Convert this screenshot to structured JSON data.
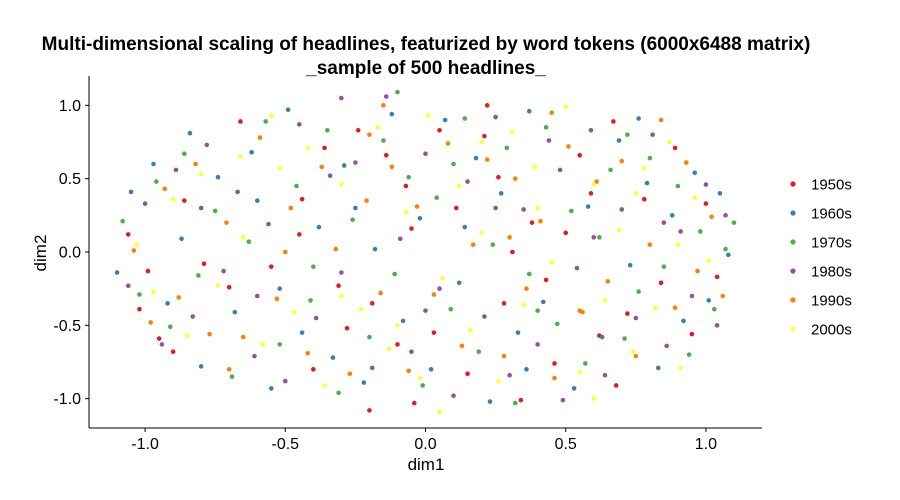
{
  "chart_data": {
    "type": "scatter",
    "title": "Multi-dimensional scaling of headlines, featurized by word tokens (6000x6488 matrix)",
    "subtitle": "_sample of 500 headlines_",
    "xlabel": "dim1",
    "ylabel": "dim2",
    "xlim": [
      -1.2,
      1.2
    ],
    "ylim": [
      -1.2,
      1.2
    ],
    "xticks": [
      -1.0,
      -0.5,
      0.0,
      0.5,
      1.0
    ],
    "yticks": [
      -1.0,
      -0.5,
      0.0,
      0.5,
      1.0
    ],
    "xtick_labels": [
      "-1.0",
      "-0.5",
      "0.0",
      "0.5",
      "1.0"
    ],
    "ytick_labels": [
      "-1.0",
      "-0.5",
      "0.0",
      "0.5",
      "1.0"
    ],
    "grid": false,
    "legend_position": "right",
    "series": [
      {
        "name": "1950s",
        "color": "#e41a1c",
        "points": [
          [
            -1.06,
            0.12
          ],
          [
            -0.99,
            -0.13
          ],
          [
            -0.95,
            -0.59
          ],
          [
            -0.9,
            -0.68
          ],
          [
            -0.86,
            0.35
          ],
          [
            -0.79,
            -0.08
          ],
          [
            -0.7,
            -0.24
          ],
          [
            -0.55,
            -0.1
          ],
          [
            -0.44,
            0.36
          ],
          [
            -0.4,
            -0.8
          ],
          [
            -0.36,
            0.71
          ],
          [
            -0.31,
            -0.23
          ],
          [
            -0.28,
            -0.52
          ],
          [
            -0.24,
            0.83
          ],
          [
            -0.19,
            -0.35
          ],
          [
            -0.14,
            0.66
          ],
          [
            -0.1,
            -0.63
          ],
          [
            -0.07,
            0.45
          ],
          [
            -0.04,
            -1.03
          ],
          [
            0.03,
            -0.55
          ],
          [
            0.11,
            0.3
          ],
          [
            0.15,
            -0.83
          ],
          [
            0.21,
            0.79
          ],
          [
            0.26,
            0.51
          ],
          [
            0.28,
            -0.35
          ],
          [
            0.34,
            -1.01
          ],
          [
            0.38,
            0.2
          ],
          [
            0.46,
            -0.76
          ],
          [
            0.5,
            0.13
          ],
          [
            0.55,
            0.66
          ],
          [
            0.62,
            -0.57
          ],
          [
            0.67,
            0.89
          ],
          [
            0.72,
            -0.42
          ],
          [
            0.78,
            0.36
          ],
          [
            0.84,
            -0.21
          ],
          [
            0.89,
            0.71
          ],
          [
            0.95,
            -0.56
          ],
          [
            1.0,
            0.33
          ],
          [
            1.04,
            -0.17
          ],
          [
            0.22,
            1.0
          ],
          [
            -0.66,
            0.89
          ],
          [
            -1.02,
            -0.39
          ],
          [
            0.68,
            -0.91
          ],
          [
            0.05,
            0.83
          ],
          [
            -0.2,
            -1.08
          ],
          [
            0.59,
            0.4
          ],
          [
            -0.45,
            0.12
          ],
          [
            0.43,
            -0.19
          ],
          [
            -0.05,
            0.16
          ],
          [
            0.31,
            0.0
          ]
        ]
      },
      {
        "name": "1960s",
        "color": "#377eb8",
        "points": [
          [
            -1.1,
            -0.14
          ],
          [
            -1.05,
            0.41
          ],
          [
            -0.97,
            0.6
          ],
          [
            -0.92,
            -0.35
          ],
          [
            -0.84,
            0.81
          ],
          [
            -0.8,
            -0.78
          ],
          [
            -0.74,
            0.51
          ],
          [
            -0.68,
            -0.41
          ],
          [
            -0.6,
            0.35
          ],
          [
            -0.55,
            -0.93
          ],
          [
            -0.49,
            0.97
          ],
          [
            -0.44,
            -0.55
          ],
          [
            -0.38,
            0.17
          ],
          [
            -0.33,
            -0.72
          ],
          [
            -0.29,
            0.59
          ],
          [
            -0.22,
            -0.89
          ],
          [
            -0.18,
            0.02
          ],
          [
            -0.12,
            0.94
          ],
          [
            -0.08,
            -0.47
          ],
          [
            -0.02,
            0.23
          ],
          [
            0.02,
            -0.8
          ],
          [
            0.07,
            0.9
          ],
          [
            0.12,
            -0.21
          ],
          [
            0.18,
            0.64
          ],
          [
            0.23,
            -1.02
          ],
          [
            0.27,
            0.4
          ],
          [
            0.33,
            -0.55
          ],
          [
            0.37,
            0.96
          ],
          [
            0.42,
            -0.34
          ],
          [
            0.48,
            0.56
          ],
          [
            0.53,
            -0.93
          ],
          [
            0.58,
            0.31
          ],
          [
            0.63,
            -0.58
          ],
          [
            0.69,
            0.76
          ],
          [
            0.73,
            -0.09
          ],
          [
            0.79,
            0.47
          ],
          [
            0.83,
            -0.79
          ],
          [
            0.88,
            0.25
          ],
          [
            0.92,
            -0.47
          ],
          [
            0.96,
            0.54
          ],
          [
            1.01,
            -0.33
          ],
          [
            1.05,
            0.4
          ],
          [
            1.08,
            -0.02
          ],
          [
            -0.25,
            0.3
          ],
          [
            0.14,
            0.17
          ],
          [
            -0.52,
            -0.25
          ],
          [
            0.36,
            -0.8
          ],
          [
            -0.62,
            0.68
          ],
          [
            0.76,
            0.91
          ],
          [
            -0.87,
            0.09
          ]
        ]
      },
      {
        "name": "1970s",
        "color": "#4daf4a",
        "points": [
          [
            -1.08,
            0.21
          ],
          [
            -1.02,
            -0.29
          ],
          [
            -0.96,
            0.48
          ],
          [
            -0.91,
            -0.51
          ],
          [
            -0.86,
            0.67
          ],
          [
            -0.81,
            -0.16
          ],
          [
            -0.75,
            0.28
          ],
          [
            -0.69,
            -0.85
          ],
          [
            -0.63,
            0.07
          ],
          [
            -0.57,
            0.89
          ],
          [
            -0.52,
            -0.63
          ],
          [
            -0.46,
            0.45
          ],
          [
            -0.41,
            -0.33
          ],
          [
            -0.35,
            0.83
          ],
          [
            -0.31,
            -0.96
          ],
          [
            -0.26,
            0.22
          ],
          [
            -0.2,
            -0.58
          ],
          [
            -0.15,
            0.76
          ],
          [
            -0.11,
            -0.15
          ],
          [
            -0.06,
            0.51
          ],
          [
            -0.01,
            -0.91
          ],
          [
            0.04,
            0.37
          ],
          [
            0.09,
            -0.39
          ],
          [
            0.14,
            0.91
          ],
          [
            0.19,
            -0.68
          ],
          [
            0.24,
            0.05
          ],
          [
            0.29,
            0.71
          ],
          [
            0.32,
            -1.03
          ],
          [
            0.37,
            -0.15
          ],
          [
            0.43,
            0.85
          ],
          [
            0.47,
            -0.49
          ],
          [
            0.52,
            0.28
          ],
          [
            0.57,
            -0.76
          ],
          [
            0.62,
            0.1
          ],
          [
            0.66,
            0.56
          ],
          [
            0.71,
            -0.59
          ],
          [
            0.76,
            -0.27
          ],
          [
            0.8,
            0.64
          ],
          [
            0.85,
            -0.1
          ],
          [
            0.9,
            0.45
          ],
          [
            0.94,
            -0.7
          ],
          [
            0.98,
            0.14
          ],
          [
            1.03,
            -0.39
          ],
          [
            1.07,
            0.02
          ],
          [
            1.1,
            0.2
          ],
          [
            -0.1,
            1.09
          ],
          [
            0.4,
            -0.4
          ],
          [
            -0.4,
            -0.1
          ],
          [
            0.1,
            0.6
          ],
          [
            0.72,
            0.8
          ]
        ]
      },
      {
        "name": "1980s",
        "color": "#984ea3",
        "points": [
          [
            -1.06,
            -0.23
          ],
          [
            -1.0,
            0.33
          ],
          [
            -0.94,
            -0.63
          ],
          [
            -0.89,
            0.56
          ],
          [
            -0.83,
            -0.44
          ],
          [
            -0.78,
            0.73
          ],
          [
            -0.72,
            -0.13
          ],
          [
            -0.67,
            0.41
          ],
          [
            -0.61,
            -0.71
          ],
          [
            -0.56,
            0.19
          ],
          [
            -0.5,
            -0.88
          ],
          [
            -0.45,
            0.87
          ],
          [
            -0.39,
            -0.45
          ],
          [
            -0.34,
            0.52
          ],
          [
            -0.3,
            -0.14
          ],
          [
            -0.25,
            0.61
          ],
          [
            -0.19,
            -0.79
          ],
          [
            -0.14,
            1.06
          ],
          [
            -0.09,
            0.09
          ],
          [
            -0.05,
            -0.68
          ],
          [
            0.0,
            0.67
          ],
          [
            0.05,
            -0.25
          ],
          [
            0.1,
            -0.98
          ],
          [
            0.15,
            0.48
          ],
          [
            0.21,
            -0.44
          ],
          [
            0.25,
            0.92
          ],
          [
            0.3,
            -0.84
          ],
          [
            0.35,
            0.29
          ],
          [
            0.4,
            -0.63
          ],
          [
            0.44,
            0.76
          ],
          [
            0.49,
            -1.01
          ],
          [
            0.54,
            -0.11
          ],
          [
            0.59,
            0.83
          ],
          [
            0.64,
            -0.84
          ],
          [
            0.7,
            0.29
          ],
          [
            0.75,
            -0.45
          ],
          [
            0.81,
            0.8
          ],
          [
            0.86,
            -0.64
          ],
          [
            0.91,
            0.14
          ],
          [
            0.95,
            -0.3
          ],
          [
            1.0,
            0.46
          ],
          [
            1.04,
            -0.5
          ],
          [
            1.07,
            0.25
          ],
          [
            -0.6,
            -0.3
          ],
          [
            0.0,
            -0.4
          ],
          [
            0.6,
            0.1
          ],
          [
            -0.3,
            1.05
          ],
          [
            0.25,
            0.3
          ],
          [
            -0.8,
            0.3
          ],
          [
            0.85,
            0.2
          ]
        ]
      },
      {
        "name": "1990s",
        "color": "#ff7f00",
        "points": [
          [
            -1.04,
            0.01
          ],
          [
            -0.98,
            -0.48
          ],
          [
            -0.93,
            0.43
          ],
          [
            -0.88,
            -0.31
          ],
          [
            -0.82,
            0.6
          ],
          [
            -0.77,
            -0.56
          ],
          [
            -0.71,
            0.2
          ],
          [
            -0.65,
            -0.58
          ],
          [
            -0.59,
            0.78
          ],
          [
            -0.53,
            -0.32
          ],
          [
            -0.48,
            0.3
          ],
          [
            -0.42,
            -0.69
          ],
          [
            -0.37,
            0.58
          ],
          [
            -0.32,
            0.02
          ],
          [
            -0.27,
            -0.83
          ],
          [
            -0.21,
            0.35
          ],
          [
            -0.16,
            -0.28
          ],
          [
            -0.12,
            0.58
          ],
          [
            -0.06,
            -0.81
          ],
          [
            -0.03,
            0.31
          ],
          [
            0.03,
            -0.29
          ],
          [
            0.08,
            0.74
          ],
          [
            0.13,
            -0.64
          ],
          [
            0.17,
            0.05
          ],
          [
            0.22,
            0.63
          ],
          [
            0.28,
            -0.71
          ],
          [
            0.32,
            0.5
          ],
          [
            0.36,
            -0.25
          ],
          [
            0.41,
            0.21
          ],
          [
            0.46,
            -0.86
          ],
          [
            0.51,
            0.72
          ],
          [
            0.56,
            -0.41
          ],
          [
            0.61,
            0.48
          ],
          [
            0.65,
            -0.2
          ],
          [
            0.7,
            0.62
          ],
          [
            0.75,
            -0.71
          ],
          [
            0.8,
            0.05
          ],
          [
            0.84,
            0.9
          ],
          [
            0.89,
            -0.38
          ],
          [
            0.93,
            0.61
          ],
          [
            0.97,
            -0.13
          ],
          [
            1.02,
            0.24
          ],
          [
            1.06,
            -0.3
          ],
          [
            -0.15,
            1.0
          ],
          [
            0.45,
            0.95
          ],
          [
            -0.7,
            -0.8
          ],
          [
            0.55,
            -0.4
          ],
          [
            -0.2,
            0.8
          ],
          [
            0.3,
            0.1
          ],
          [
            -0.5,
            0.0
          ]
        ]
      },
      {
        "name": "2000s",
        "color": "#ffff33",
        "points": [
          [
            -1.03,
            0.05
          ],
          [
            -0.97,
            -0.27
          ],
          [
            -0.9,
            0.36
          ],
          [
            -0.85,
            -0.57
          ],
          [
            -0.8,
            0.53
          ],
          [
            -0.74,
            -0.23
          ],
          [
            -0.66,
            0.65
          ],
          [
            -0.58,
            -0.63
          ],
          [
            -0.52,
            0.57
          ],
          [
            -0.47,
            -0.41
          ],
          [
            -0.42,
            0.71
          ],
          [
            -0.36,
            -0.91
          ],
          [
            -0.3,
            0.46
          ],
          [
            -0.23,
            -0.39
          ],
          [
            -0.17,
            0.85
          ],
          [
            -0.13,
            -0.66
          ],
          [
            -0.07,
            0.27
          ],
          [
            -0.02,
            -0.86
          ],
          [
            0.01,
            0.93
          ],
          [
            0.06,
            -0.18
          ],
          [
            0.12,
            0.45
          ],
          [
            0.16,
            -0.53
          ],
          [
            0.2,
            0.13
          ],
          [
            0.26,
            -0.88
          ],
          [
            0.31,
            0.82
          ],
          [
            0.35,
            -0.36
          ],
          [
            0.39,
            0.58
          ],
          [
            0.45,
            -0.07
          ],
          [
            0.5,
            0.99
          ],
          [
            0.55,
            -0.82
          ],
          [
            0.6,
            0.46
          ],
          [
            0.64,
            -0.33
          ],
          [
            0.69,
            0.15
          ],
          [
            0.74,
            -0.68
          ],
          [
            0.78,
            0.57
          ],
          [
            0.82,
            -0.38
          ],
          [
            0.87,
            0.75
          ],
          [
            0.91,
            -0.79
          ],
          [
            0.96,
            0.37
          ],
          [
            1.01,
            -0.06
          ],
          [
            -0.55,
            0.93
          ],
          [
            0.05,
            -1.09
          ],
          [
            0.75,
            0.4
          ],
          [
            -0.3,
            -0.3
          ],
          [
            0.4,
            0.3
          ],
          [
            -0.1,
            -0.5
          ],
          [
            0.9,
            0.05
          ],
          [
            -0.65,
            0.1
          ],
          [
            0.2,
            0.75
          ],
          [
            0.6,
            -1.0
          ]
        ]
      }
    ]
  }
}
